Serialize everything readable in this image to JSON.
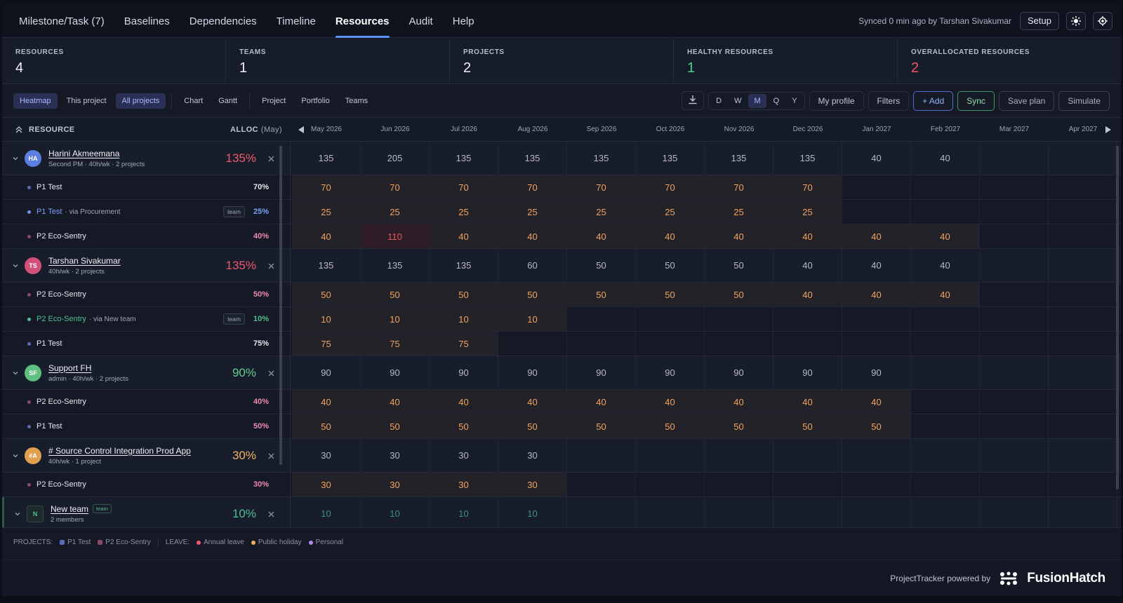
{
  "nav": {
    "tabs": [
      "Milestone/Task (7)",
      "Baselines",
      "Dependencies",
      "Timeline",
      "Resources",
      "Audit",
      "Help"
    ],
    "active_tab": 4,
    "sync_status": "Synced 0 min ago by Tarshan Sivakumar",
    "setup": "Setup"
  },
  "stats": [
    {
      "label": "RESOURCES",
      "value": 4
    },
    {
      "label": "TEAMS",
      "value": 1
    },
    {
      "label": "PROJECTS",
      "value": 2
    },
    {
      "label": "HEALTHY RESOURCES",
      "value": 1,
      "color": "#4fd08a"
    },
    {
      "label": "OVERALLOCATED RESOURCES",
      "value": 2,
      "color": "#f0596b"
    }
  ],
  "toolbar": {
    "left": [
      [
        {
          "label": "Heatmap",
          "active": true
        },
        {
          "label": "This project"
        },
        {
          "label": "All projects",
          "active": true
        }
      ],
      [
        {
          "label": "Chart"
        },
        {
          "label": "Gantt"
        }
      ],
      [
        {
          "label": "Project"
        },
        {
          "label": "Portfolio"
        },
        {
          "label": "Teams"
        }
      ]
    ],
    "periods": [
      {
        "label": "D"
      },
      {
        "label": "W"
      },
      {
        "label": "M",
        "active": true
      },
      {
        "label": "Q"
      },
      {
        "label": "Y"
      }
    ],
    "buttons": [
      {
        "label": "My profile",
        "variant": "plain"
      },
      {
        "label": "Filters",
        "variant": "plain"
      },
      {
        "label": "+ Add",
        "variant": "primary"
      },
      {
        "label": "Sync",
        "variant": "success"
      },
      {
        "label": "Save plan",
        "variant": "outline"
      },
      {
        "label": "Simulate",
        "variant": "outline"
      }
    ]
  },
  "grid": {
    "resource_header": "RESOURCE",
    "alloc_header": "ALLOC",
    "alloc_month": "(May)",
    "months": [
      "May 2026",
      "Jun 2026",
      "Jul 2026",
      "Aug 2026",
      "Sep 2026",
      "Oct 2026",
      "Nov 2026",
      "Dec 2026",
      "Jan 2027",
      "Feb 2027",
      "Mar 2027",
      "Apr 2027"
    ],
    "rows": [
      {
        "kind": "resource",
        "initials": "HA",
        "avatar_color": "#5b7fe0",
        "name": "Harini Akmeemana",
        "detail": "Second PM · 40h/wk · 2 projects",
        "alloc": "135%",
        "alloc_color": "#f0596b",
        "cells": [
          135,
          205,
          135,
          135,
          135,
          135,
          135,
          135,
          40,
          40,
          null,
          null
        ]
      },
      {
        "kind": "assignment",
        "project": "P1 Test",
        "dot_color": "#5a6bb0",
        "alloc": "70%",
        "alloc_color": "#e6e8ef",
        "cells": [
          70,
          70,
          70,
          70,
          70,
          70,
          70,
          70,
          null,
          null,
          null,
          null
        ]
      },
      {
        "kind": "assignment",
        "project": "P1 Test",
        "project_color": "#7aa2f7",
        "dot_color": "#6f8fe8",
        "via": "· via Procurement",
        "badge": "team",
        "alloc": "25%",
        "alloc_color": "#7aa2f7",
        "cells": [
          25,
          25,
          25,
          25,
          25,
          25,
          25,
          25,
          null,
          null,
          null,
          null
        ]
      },
      {
        "kind": "assignment",
        "project": "P2 Eco-Sentry",
        "dot_color": "#8a4a66",
        "alloc": "40%",
        "alloc_color": "#f08ab0",
        "over_cells": [
          1
        ],
        "cells": [
          40,
          110,
          40,
          40,
          40,
          40,
          40,
          40,
          40,
          40,
          null,
          null
        ]
      },
      {
        "kind": "resource",
        "initials": "TS",
        "avatar_color": "#d0507a",
        "name": "Tarshan Sivakumar",
        "detail": "40h/wk · 2 projects",
        "alloc": "135%",
        "alloc_color": "#f0596b",
        "cells": [
          135,
          135,
          135,
          60,
          50,
          50,
          50,
          40,
          40,
          40,
          null,
          null
        ]
      },
      {
        "kind": "assignment",
        "project": "P2 Eco-Sentry",
        "dot_color": "#8a4a66",
        "alloc": "50%",
        "alloc_color": "#f08ab0",
        "cells": [
          50,
          50,
          50,
          50,
          50,
          50,
          50,
          40,
          40,
          40,
          null,
          null
        ]
      },
      {
        "kind": "assignment",
        "project": "P2 Eco-Sentry",
        "project_color": "#4fbf8f",
        "dot_color": "#4fbf8f",
        "via": "· via New team",
        "badge": "team",
        "alloc": "10%",
        "alloc_color": "#4fbf8f",
        "cells": [
          10,
          10,
          10,
          10,
          null,
          null,
          null,
          null,
          null,
          null,
          null,
          null
        ]
      },
      {
        "kind": "assignment",
        "project": "P1 Test",
        "dot_color": "#5a6bb0",
        "alloc": "75%",
        "alloc_color": "#e6e8ef",
        "cells": [
          75,
          75,
          75,
          null,
          null,
          null,
          null,
          null,
          null,
          null,
          null,
          null
        ]
      },
      {
        "kind": "resource",
        "initials": "SF",
        "avatar_color": "#5fc080",
        "name": "Support FH",
        "detail": "admin · 40h/wk · 2 projects",
        "alloc": "90%",
        "alloc_color": "#5fd08a",
        "cells": [
          90,
          90,
          90,
          90,
          90,
          90,
          90,
          90,
          90,
          null,
          null,
          null
        ]
      },
      {
        "kind": "assignment",
        "project": "P2 Eco-Sentry",
        "dot_color": "#8a4a66",
        "alloc": "40%",
        "alloc_color": "#f08ab0",
        "cells": [
          40,
          40,
          40,
          40,
          40,
          40,
          40,
          40,
          40,
          null,
          null,
          null
        ]
      },
      {
        "kind": "assignment",
        "project": "P1 Test",
        "dot_color": "#5a6bb0",
        "alloc": "50%",
        "alloc_color": "#f08ab0",
        "cells": [
          50,
          50,
          50,
          50,
          50,
          50,
          50,
          50,
          50,
          null,
          null,
          null
        ]
      },
      {
        "kind": "resource",
        "initials": "#A",
        "avatar_color": "#e0a050",
        "name": "# Source Control Integration Prod App",
        "detail": "40h/wk · 1 project",
        "alloc": "30%",
        "alloc_color": "#f0b060",
        "cells": [
          30,
          30,
          30,
          30,
          null,
          null,
          null,
          null,
          null,
          null,
          null,
          null
        ]
      },
      {
        "kind": "assignment",
        "project": "P2 Eco-Sentry",
        "dot_color": "#8a4a66",
        "alloc": "30%",
        "alloc_color": "#f08ab0",
        "cells": [
          30,
          30,
          30,
          30,
          null,
          null,
          null,
          null,
          null,
          null,
          null,
          null
        ]
      },
      {
        "kind": "team",
        "initials": "N",
        "avatar_color": "#4fbf8f",
        "name": "New team",
        "badge": "team",
        "detail": "2 members",
        "alloc": "10%",
        "alloc_color": "#4fbf8f",
        "cells": [
          10,
          10,
          10,
          10,
          null,
          null,
          null,
          null,
          null,
          null,
          null,
          null
        ]
      }
    ]
  },
  "legend": {
    "projects_label": "PROJECTS:",
    "projects": [
      {
        "label": "P1 Test",
        "color": "#5a6bb0"
      },
      {
        "label": "P2 Eco-Sentry",
        "color": "#8a4a66"
      }
    ],
    "leave_label": "LEAVE:",
    "leave": [
      {
        "label": "Annual leave",
        "color": "#f0596b"
      },
      {
        "label": "Public holiday",
        "color": "#f0b060"
      },
      {
        "label": "Personal",
        "color": "#b08af0"
      }
    ]
  },
  "footer": {
    "text": "ProjectTracker powered by",
    "brand": "FusionHatch"
  }
}
